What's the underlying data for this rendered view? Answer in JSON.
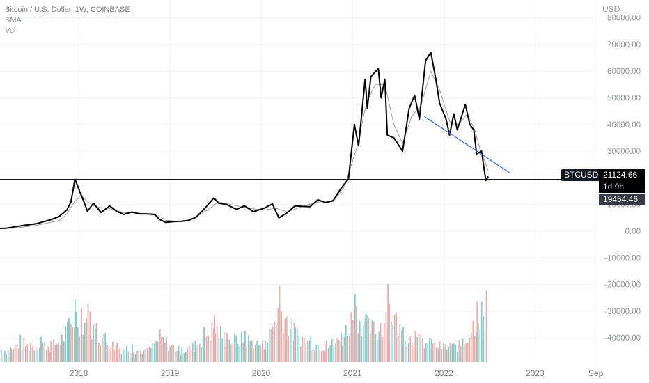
{
  "legend": {
    "title": "Bitcoin / U.S. Dollar, 1W, COINBASE",
    "indicator_sma": "SMA",
    "indicator_vol": "Vol"
  },
  "axis": {
    "currency": "USD"
  },
  "price_tag": {
    "symbol": "BTCUSD",
    "price": "21124.66",
    "countdown": "1d 9h",
    "level_price": "19454.46",
    "symbol_bg": "#131722",
    "level_bg": "#363a45"
  },
  "colors": {
    "price_line": "#000000",
    "sma_line": "#9b9b9b",
    "trendline": "#2962ff",
    "horizontal_line": "#131722",
    "vol_up": "#7ececa",
    "vol_down": "#f7a8a6"
  },
  "chart_data": {
    "type": "line",
    "title": "Bitcoin / U.S. Dollar, 1W, COINBASE",
    "ylabel": "USD",
    "ylim": [
      -50000,
      80000
    ],
    "yticks": [
      "80000.00",
      "70000.00",
      "60000.00",
      "50000.00",
      "40000.00",
      "30000.00",
      "20000.00",
      "10000.00",
      "0.00",
      "-10000.00",
      "-20000.00",
      "-30000.00",
      "-40000.00"
    ],
    "xticks": [
      {
        "label": "2018",
        "x": "2018-01"
      },
      {
        "label": "2019",
        "x": "2019-01"
      },
      {
        "label": "2020",
        "x": "2020-01"
      },
      {
        "label": "2021",
        "x": "2021-01"
      },
      {
        "label": "2022",
        "x": "2022-01"
      },
      {
        "label": "2023",
        "x": "2023-01"
      },
      {
        "label": "Sep",
        "x": "2023-09"
      }
    ],
    "grid": true,
    "series": [
      {
        "kind": "price",
        "points": [
          [
            "2017-01",
            1000
          ],
          [
            "2017-03",
            1100
          ],
          [
            "2017-05",
            2000
          ],
          [
            "2017-07",
            2800
          ],
          [
            "2017-09",
            4400
          ],
          [
            "2017-10",
            5500
          ],
          [
            "2017-11",
            8000
          ],
          [
            "2017-12-01",
            11000
          ],
          [
            "2017-12-17",
            19500
          ],
          [
            "2018-01-05",
            15000
          ],
          [
            "2018-01-20",
            11500
          ],
          [
            "2018-02-05",
            7500
          ],
          [
            "2018-03-01",
            10500
          ],
          [
            "2018-04-01",
            7000
          ],
          [
            "2018-05-05",
            9500
          ],
          [
            "2018-06-01",
            7500
          ],
          [
            "2018-07-01",
            6300
          ],
          [
            "2018-08-01",
            7200
          ],
          [
            "2018-09-01",
            6500
          ],
          [
            "2018-10-01",
            6500
          ],
          [
            "2018-11-01",
            6300
          ],
          [
            "2018-11-20",
            4500
          ],
          [
            "2018-12-15",
            3300
          ],
          [
            "2019-01-15",
            3600
          ],
          [
            "2019-02-15",
            3700
          ],
          [
            "2019-03-15",
            4000
          ],
          [
            "2019-04-15",
            5200
          ],
          [
            "2019-05-15",
            8000
          ],
          [
            "2019-06-26",
            12500
          ],
          [
            "2019-07-15",
            10500
          ],
          [
            "2019-08-15",
            10000
          ],
          [
            "2019-09-25",
            8200
          ],
          [
            "2019-10-26",
            9500
          ],
          [
            "2019-12-01",
            7300
          ],
          [
            "2020-01-15",
            8700
          ],
          [
            "2020-02-15",
            10200
          ],
          [
            "2020-03-12",
            5000
          ],
          [
            "2020-04-15",
            7000
          ],
          [
            "2020-05-15",
            9500
          ],
          [
            "2020-06-15",
            9300
          ],
          [
            "2020-07-15",
            9200
          ],
          [
            "2020-08-15",
            11800
          ],
          [
            "2020-09-15",
            10700
          ],
          [
            "2020-10-15",
            11500
          ],
          [
            "2020-11-15",
            16000
          ],
          [
            "2020-12-15",
            19500
          ],
          [
            "2021-01-08",
            40000
          ],
          [
            "2021-01-25",
            32000
          ],
          [
            "2021-02-20",
            57000
          ],
          [
            "2021-03-01",
            46000
          ],
          [
            "2021-03-15",
            58000
          ],
          [
            "2021-04-14",
            61000
          ],
          [
            "2021-04-25",
            50000
          ],
          [
            "2021-05-10",
            57000
          ],
          [
            "2021-05-20",
            36000
          ],
          [
            "2021-06-15",
            35000
          ],
          [
            "2021-07-20",
            30000
          ],
          [
            "2021-08-15",
            46000
          ],
          [
            "2021-09-06",
            51000
          ],
          [
            "2021-09-25",
            42000
          ],
          [
            "2021-10-20",
            64000
          ],
          [
            "2021-11-10",
            67000
          ],
          [
            "2021-11-30",
            57000
          ],
          [
            "2021-12-15",
            48000
          ],
          [
            "2022-01-10",
            42000
          ],
          [
            "2022-01-24",
            36000
          ],
          [
            "2022-02-10",
            44000
          ],
          [
            "2022-02-24",
            38000
          ],
          [
            "2022-03-28",
            47500
          ],
          [
            "2022-04-15",
            40000
          ],
          [
            "2022-05-01",
            38000
          ],
          [
            "2022-05-12",
            29000
          ],
          [
            "2022-06-01",
            30000
          ],
          [
            "2022-06-13",
            22000
          ],
          [
            "2022-06-18",
            19000
          ],
          [
            "2022-06-28",
            20500
          ]
        ]
      },
      {
        "kind": "sma",
        "points": [
          [
            "2017-01",
            950
          ],
          [
            "2017-04",
            1100
          ],
          [
            "2017-07",
            2200
          ],
          [
            "2017-10",
            4000
          ],
          [
            "2017-11",
            6500
          ],
          [
            "2017-12",
            11000
          ],
          [
            "2018-01-10",
            13500
          ],
          [
            "2018-02-05",
            11000
          ],
          [
            "2018-03-15",
            9000
          ],
          [
            "2018-05-01",
            8500
          ],
          [
            "2018-07-01",
            7000
          ],
          [
            "2018-09-01",
            6800
          ],
          [
            "2018-11-15",
            5800
          ],
          [
            "2018-12-20",
            4100
          ],
          [
            "2019-02-01",
            3600
          ],
          [
            "2019-04-01",
            4500
          ],
          [
            "2019-06-01",
            8000
          ],
          [
            "2019-07-15",
            11000
          ],
          [
            "2019-09-15",
            9700
          ],
          [
            "2019-11-15",
            8500
          ],
          [
            "2020-01-15",
            8000
          ],
          [
            "2020-03-01",
            8600
          ],
          [
            "2020-04-15",
            7200
          ],
          [
            "2020-06-15",
            9300
          ],
          [
            "2020-08-15",
            11000
          ],
          [
            "2020-10-15",
            11100
          ],
          [
            "2020-12-01",
            17000
          ],
          [
            "2021-01-20",
            32000
          ],
          [
            "2021-02-25",
            48000
          ],
          [
            "2021-04-01",
            55000
          ],
          [
            "2021-05-10",
            55000
          ],
          [
            "2021-06-15",
            40000
          ],
          [
            "2021-07-20",
            33000
          ],
          [
            "2021-08-25",
            43000
          ],
          [
            "2021-10-01",
            47000
          ],
          [
            "2021-11-10",
            60000
          ],
          [
            "2021-12-15",
            53000
          ],
          [
            "2022-01-25",
            41000
          ],
          [
            "2022-03-01",
            40000
          ],
          [
            "2022-04-05",
            44000
          ],
          [
            "2022-05-05",
            38000
          ],
          [
            "2022-05-25",
            31000
          ],
          [
            "2022-06-15",
            26000
          ],
          [
            "2022-06-28",
            22500
          ]
        ]
      },
      {
        "kind": "trendline",
        "points": [
          [
            "2021-10-15",
            43000
          ],
          [
            "2022-09-20",
            22000
          ]
        ]
      }
    ],
    "horizontal_line": 19454.46,
    "volume": {
      "label": "Vol",
      "values": [
        [
          "2017-01-05",
          12,
          "u"
        ],
        [
          "2017-02-15",
          18,
          "d"
        ],
        [
          "2017-04-01",
          15,
          "u"
        ],
        [
          "2017-05-10",
          28,
          "u"
        ],
        [
          "2017-06-20",
          20,
          "d"
        ],
        [
          "2017-08-01",
          26,
          "u"
        ],
        [
          "2017-09-10",
          22,
          "d"
        ],
        [
          "2017-10-20",
          30,
          "u"
        ],
        [
          "2017-11-20",
          46,
          "u"
        ],
        [
          "2017-12-15",
          64,
          "u"
        ],
        [
          "2018-01-10",
          55,
          "d"
        ],
        [
          "2018-02-05",
          60,
          "d"
        ],
        [
          "2018-03-10",
          40,
          "d"
        ],
        [
          "2018-04-15",
          30,
          "u"
        ],
        [
          "2018-06-01",
          20,
          "d"
        ],
        [
          "2018-08-01",
          18,
          "u"
        ],
        [
          "2018-10-01",
          14,
          "d"
        ],
        [
          "2018-11-20",
          34,
          "d"
        ],
        [
          "2018-12-15",
          26,
          "d"
        ],
        [
          "2019-02-15",
          15,
          "u"
        ],
        [
          "2019-04-10",
          22,
          "u"
        ],
        [
          "2019-05-15",
          36,
          "u"
        ],
        [
          "2019-06-26",
          48,
          "d"
        ],
        [
          "2019-08-15",
          30,
          "d"
        ],
        [
          "2019-10-26",
          32,
          "u"
        ],
        [
          "2020-01-15",
          22,
          "u"
        ],
        [
          "2020-03-12",
          78,
          "d"
        ],
        [
          "2020-05-10",
          40,
          "d"
        ],
        [
          "2020-07-15",
          26,
          "u"
        ],
        [
          "2020-09-15",
          22,
          "d"
        ],
        [
          "2020-11-15",
          30,
          "u"
        ],
        [
          "2021-01-08",
          70,
          "u"
        ],
        [
          "2021-02-20",
          50,
          "u"
        ],
        [
          "2021-04-20",
          40,
          "d"
        ],
        [
          "2021-05-20",
          80,
          "d"
        ],
        [
          "2021-07-20",
          36,
          "u"
        ],
        [
          "2021-09-06",
          32,
          "d"
        ],
        [
          "2021-11-10",
          24,
          "u"
        ],
        [
          "2022-01-24",
          20,
          "d"
        ],
        [
          "2022-03-15",
          24,
          "u"
        ],
        [
          "2022-05-12",
          62,
          "d"
        ],
        [
          "2022-06-18",
          74,
          "d"
        ]
      ]
    }
  }
}
